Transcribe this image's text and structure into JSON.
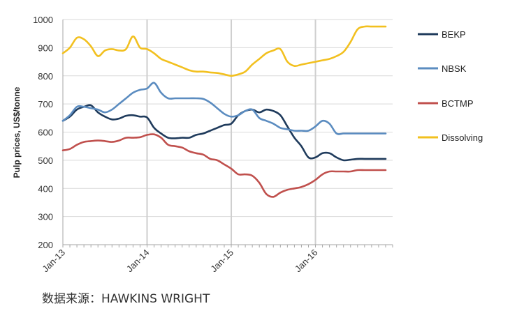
{
  "chart_data": {
    "type": "line",
    "title": "",
    "xlabel": "",
    "ylabel": "Pulp prices, US$/tonne",
    "ylim": [
      200,
      1000
    ],
    "yticks": [
      200,
      300,
      400,
      500,
      600,
      700,
      800,
      900,
      1000
    ],
    "xlim": [
      0,
      47
    ],
    "xticks": [
      {
        "label": "Jan-13",
        "x": 0
      },
      {
        "label": "Jan-14",
        "x": 12
      },
      {
        "label": "Jan-15",
        "x": 24
      },
      {
        "label": "Jan-16",
        "x": 36
      }
    ],
    "grid": true,
    "legend_position": "right",
    "x": [
      0,
      1,
      2,
      3,
      4,
      5,
      6,
      7,
      8,
      9,
      10,
      11,
      12,
      13,
      14,
      15,
      16,
      17,
      18,
      19,
      20,
      21,
      22,
      23,
      24,
      25,
      26,
      27,
      28,
      29,
      30,
      31,
      32,
      33,
      34,
      35,
      36,
      37,
      38,
      39,
      40,
      41,
      42,
      43,
      44,
      45,
      46
    ],
    "series": [
      {
        "name": "BEKP",
        "color": "#1f3b5c",
        "values": [
          640,
          655,
          680,
          690,
          695,
          670,
          655,
          645,
          648,
          658,
          660,
          655,
          652,
          615,
          595,
          580,
          578,
          580,
          580,
          590,
          595,
          605,
          615,
          625,
          630,
          660,
          675,
          680,
          670,
          680,
          675,
          660,
          620,
          580,
          550,
          510,
          510,
          525,
          525,
          510,
          500,
          502,
          505,
          505,
          505,
          505,
          505
        ]
      },
      {
        "name": "NBSK",
        "color": "#5b8cc0",
        "values": [
          640,
          660,
          690,
          690,
          685,
          680,
          670,
          680,
          700,
          720,
          740,
          750,
          755,
          775,
          740,
          720,
          720,
          720,
          720,
          720,
          718,
          705,
          685,
          665,
          655,
          660,
          675,
          680,
          650,
          640,
          630,
          615,
          610,
          605,
          605,
          605,
          620,
          640,
          630,
          595,
          595,
          595,
          595,
          595,
          595,
          595,
          595
        ]
      },
      {
        "name": "BCTMP",
        "color": "#c0504d",
        "values": [
          535,
          540,
          555,
          565,
          568,
          570,
          568,
          565,
          570,
          580,
          580,
          582,
          590,
          592,
          580,
          555,
          550,
          545,
          532,
          525,
          520,
          505,
          500,
          485,
          470,
          450,
          450,
          445,
          420,
          380,
          370,
          385,
          395,
          400,
          405,
          415,
          430,
          450,
          460,
          460,
          460,
          460,
          465,
          465,
          465,
          465,
          465
        ]
      },
      {
        "name": "Dissolving",
        "color": "#f2c01f",
        "values": [
          880,
          900,
          935,
          930,
          905,
          870,
          890,
          895,
          890,
          895,
          940,
          900,
          895,
          880,
          860,
          850,
          840,
          830,
          820,
          815,
          815,
          812,
          810,
          805,
          800,
          805,
          815,
          840,
          860,
          880,
          890,
          895,
          850,
          835,
          840,
          845,
          850,
          855,
          860,
          870,
          885,
          920,
          965,
          975,
          975,
          975,
          975
        ]
      }
    ]
  },
  "source_note": "数据来源：HAWKINS WRIGHT"
}
